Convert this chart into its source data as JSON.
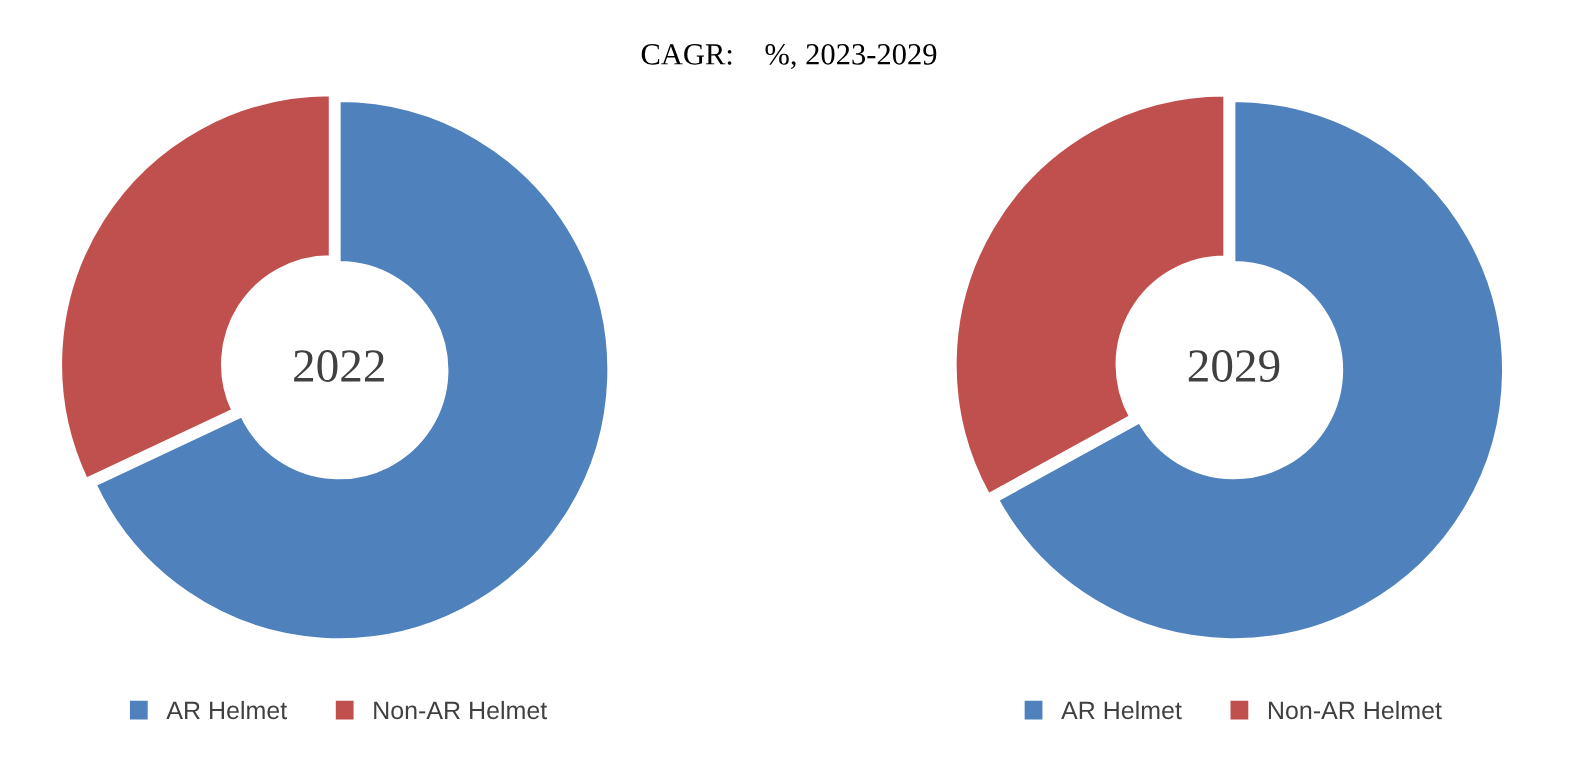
{
  "chart_data": [
    {
      "type": "donut",
      "title": "CAGR:    %, 2023-2029",
      "categories": [
        "AR Helmet",
        "Non-AR Helmet"
      ],
      "values": [
        68,
        32
      ],
      "colors": [
        "#4f81bd",
        "#c0504d"
      ],
      "annotations": [
        "2022"
      ],
      "legend": "bottom"
    },
    {
      "type": "donut",
      "categories": [
        "AR Helmet",
        "Non-AR Helmet"
      ],
      "values": [
        67,
        33
      ],
      "colors": [
        "#4f81bd",
        "#c0504d"
      ],
      "annotations": [
        "2029"
      ],
      "legend": "bottom"
    }
  ]
}
